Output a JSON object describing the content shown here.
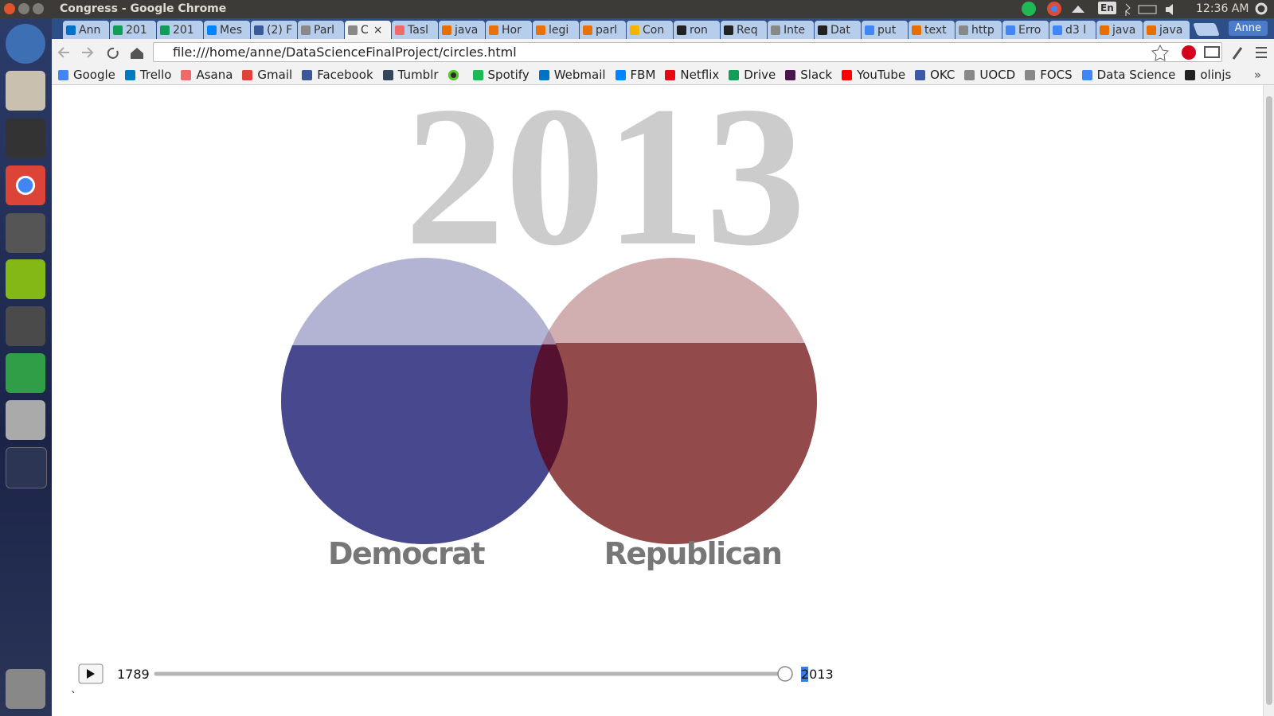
{
  "window": {
    "title": "Congress - Google Chrome",
    "lang": "En",
    "clock": "12:36 AM",
    "user": "Anne"
  },
  "tabs": [
    "Ann",
    "201",
    "201",
    "Mes",
    "(2) F",
    "Parl",
    "C",
    "Tasl",
    "java",
    "Hor",
    "legi",
    "parl",
    "Con",
    "ron",
    "Req",
    "Inte",
    "Dat",
    "put",
    "text",
    "http",
    "Erro",
    "d3 l",
    "java",
    "java"
  ],
  "address": "file:///home/anne/DataScienceFinalProject/circles.html",
  "bookmarks": [
    "Google",
    "Trello",
    "Asana",
    "Gmail",
    "Facebook",
    "Tumblr",
    "Spotify",
    "Webmail",
    "FBM",
    "Netflix",
    "Drive",
    "Slack",
    "YouTube",
    "OKC",
    "UOCD",
    "FOCS",
    "Data Science",
    "olinjs"
  ],
  "page": {
    "year": "2013",
    "parties": [
      "Democrat",
      "Republican"
    ],
    "slider": {
      "start": "1789",
      "end": "2013"
    },
    "stray": "`"
  }
}
